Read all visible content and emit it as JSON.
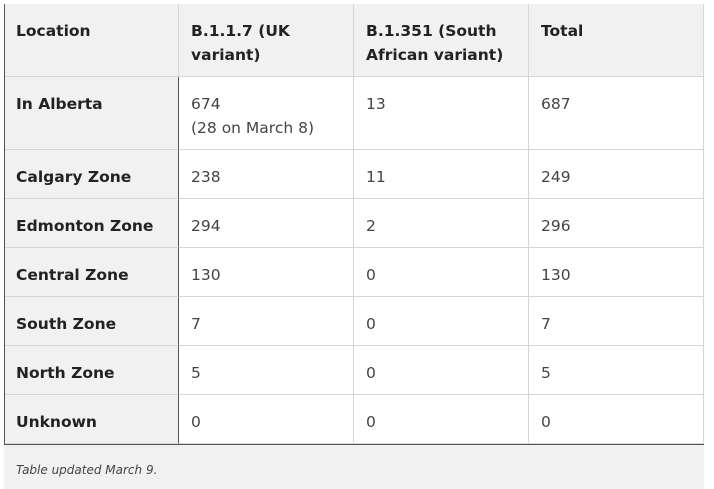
{
  "table": {
    "header": [
      "Location",
      "B.1.1.7 (UK variant)",
      "B.1.351 (South African variant)",
      "Total"
    ],
    "rows": [
      [
        "In Alberta",
        "674\n(28 on March 8)",
        "13",
        "687"
      ],
      [
        "Calgary Zone",
        "238",
        "11",
        "249"
      ],
      [
        "Edmonton Zone",
        "294",
        "2",
        "296"
      ],
      [
        "Central Zone",
        "130",
        "0",
        "130"
      ],
      [
        "South Zone",
        "7",
        "0",
        "7"
      ],
      [
        "North Zone",
        "5",
        "0",
        "5"
      ],
      [
        "Unknown",
        "0",
        "0",
        "0"
      ]
    ],
    "footnote": "Table updated March 9."
  }
}
